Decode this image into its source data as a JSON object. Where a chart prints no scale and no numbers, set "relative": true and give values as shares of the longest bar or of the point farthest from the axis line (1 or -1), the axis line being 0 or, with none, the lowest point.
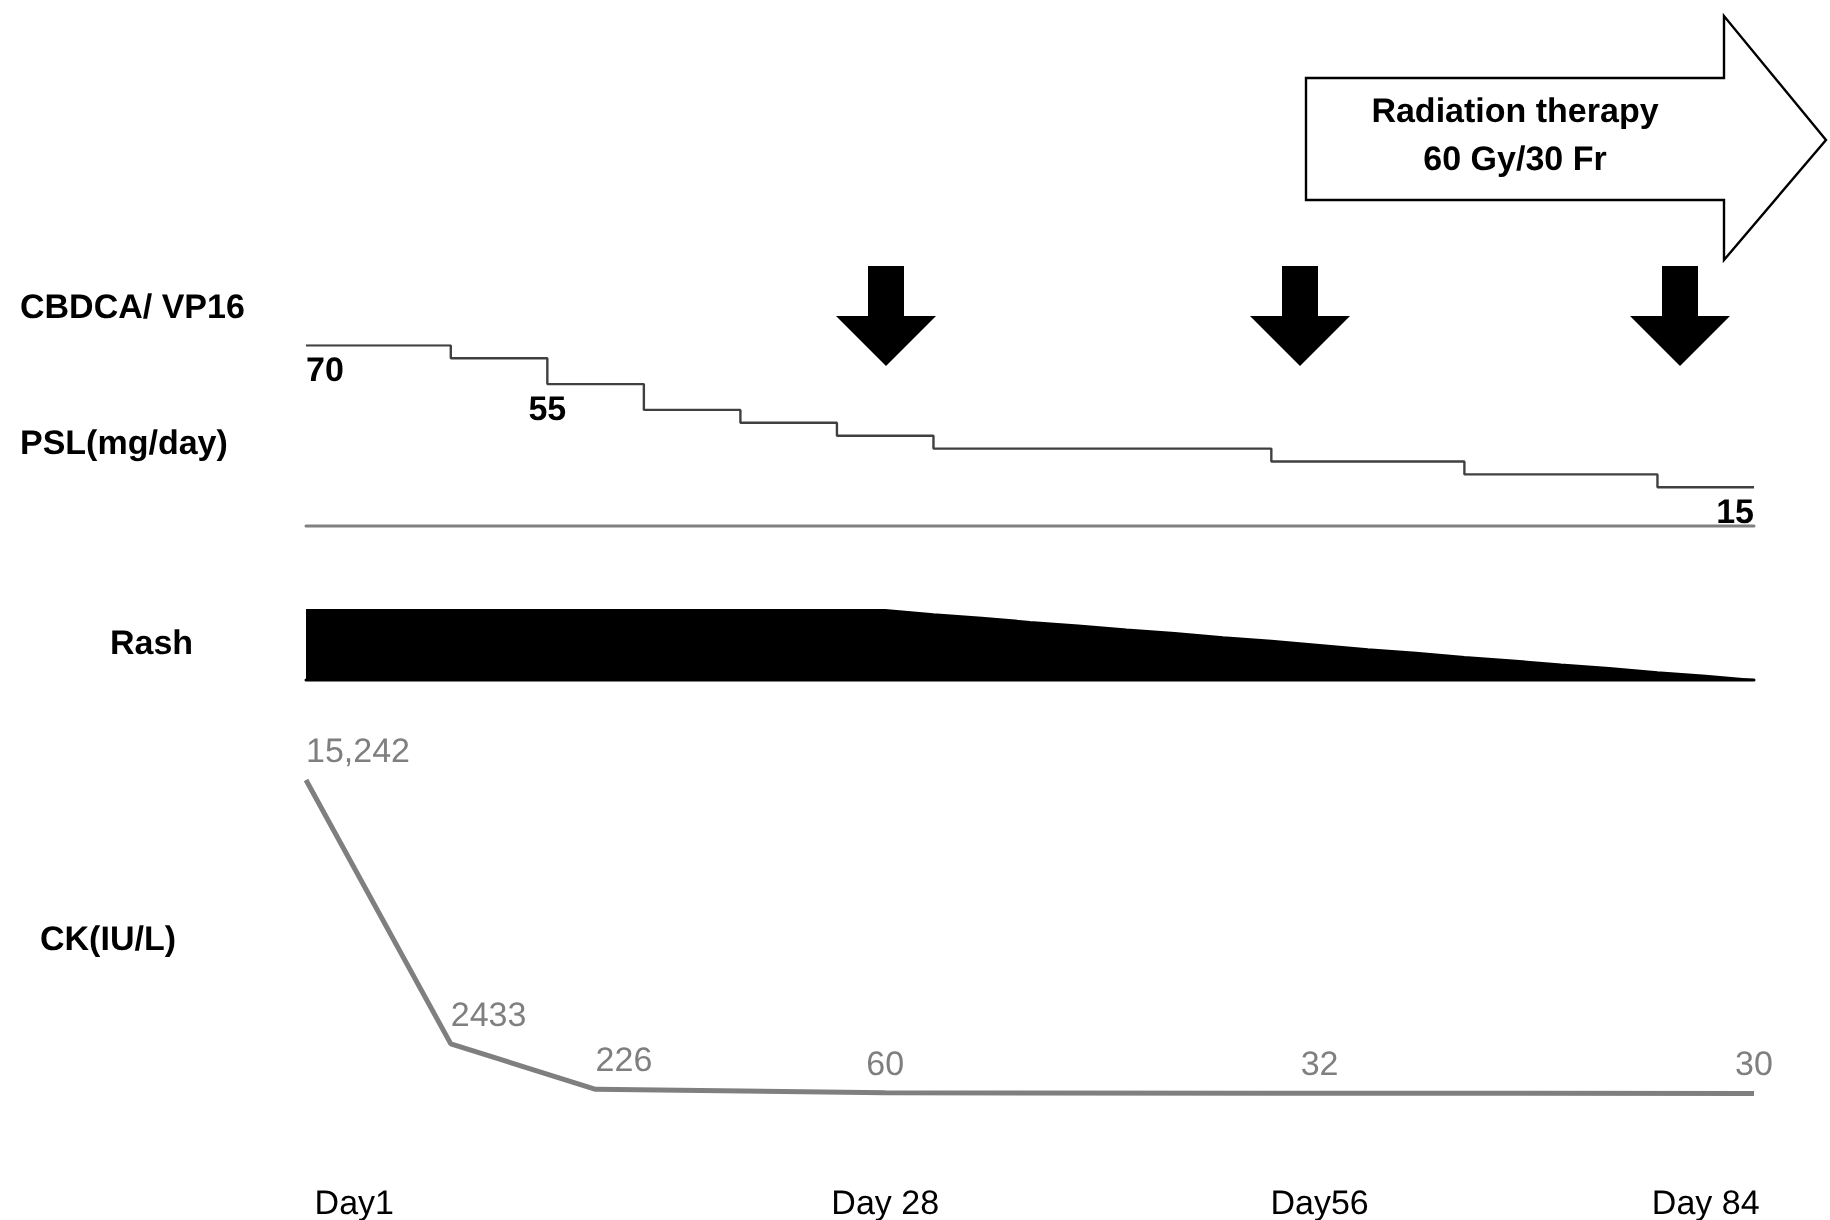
{
  "chart_data": [
    {
      "type": "step",
      "ylabel": "PSL(mg/day)",
      "annotations": [
        "CBDCA/ VP16",
        "Radiation therapy\n60 Gy/30 Fr"
      ],
      "categories": [
        null,
        null,
        null,
        null,
        null,
        null,
        null,
        null,
        null,
        null,
        null,
        null,
        null,
        null,
        null,
        null,
        null,
        null,
        null,
        null,
        null,
        null,
        null,
        null,
        null,
        null,
        null,
        null,
        null,
        null,
        null
      ],
      "values": [
        70,
        null,
        null,
        65,
        null,
        55,
        null,
        45,
        null,
        40,
        null,
        35,
        null,
        30,
        null,
        null,
        null,
        null,
        null,
        null,
        25,
        null,
        null,
        null,
        20,
        null,
        null,
        null,
        15,
        null,
        15
      ],
      "value_labels": [
        "70",
        null,
        null,
        null,
        null,
        "55",
        null,
        null,
        null,
        null,
        null,
        null,
        null,
        null,
        null,
        null,
        null,
        null,
        null,
        null,
        null,
        null,
        null,
        null,
        null,
        null,
        null,
        null,
        null,
        null,
        "15"
      ],
      "color": "#404040",
      "tick_labels": false
    },
    {
      "type": "area",
      "ylabel": "Rash",
      "relative": true,
      "categories": [
        null,
        null,
        null,
        null,
        null,
        null,
        null,
        null,
        null,
        null,
        null,
        null,
        null,
        null,
        null,
        null,
        null,
        null,
        null,
        null,
        null,
        null,
        null,
        null,
        null,
        null,
        null,
        null,
        null,
        null,
        null
      ],
      "values": [
        1,
        1,
        1,
        1,
        1,
        1,
        1,
        1,
        1,
        1,
        1,
        1,
        1,
        0.94,
        0.89,
        0.83,
        0.78,
        0.72,
        0.67,
        0.61,
        0.56,
        0.5,
        0.44,
        0.39,
        0.33,
        0.28,
        0.22,
        0.17,
        0.11,
        0.06,
        0
      ],
      "color": "#000000",
      "tick_labels": false
    },
    {
      "type": "line",
      "ylabel": "CK(IU/L)",
      "categories": [
        null,
        "Day1",
        null,
        null,
        null,
        null,
        null,
        null,
        null,
        null,
        null,
        null,
        "Day 28",
        null,
        null,
        null,
        null,
        null,
        null,
        null,
        null,
        "Day56",
        null,
        null,
        null,
        null,
        null,
        null,
        null,
        "Day 84",
        null
      ],
      "values": [
        15242,
        null,
        null,
        2433,
        null,
        null,
        226,
        null,
        null,
        null,
        null,
        null,
        60,
        null,
        null,
        null,
        null,
        null,
        null,
        null,
        null,
        32,
        null,
        null,
        null,
        null,
        null,
        null,
        null,
        null,
        30
      ],
      "value_labels": [
        "15,242",
        null,
        null,
        "2433",
        null,
        null,
        "226",
        null,
        null,
        null,
        null,
        null,
        "60",
        null,
        null,
        null,
        null,
        null,
        null,
        null,
        null,
        "32",
        null,
        null,
        null,
        null,
        null,
        null,
        null,
        null,
        "30"
      ],
      "color": "#7f7f7f",
      "tick_labels": "x"
    }
  ]
}
